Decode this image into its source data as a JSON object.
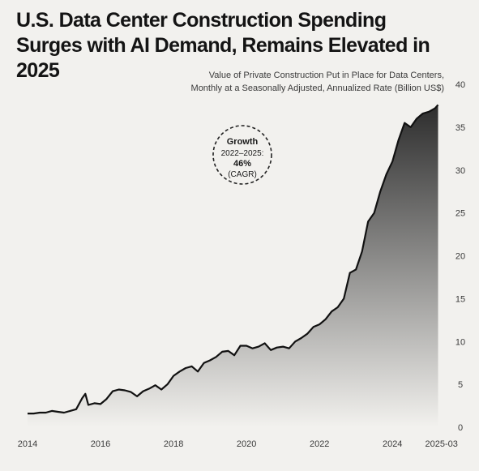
{
  "title_line1": "U.S. Data Center Construction Spending",
  "title_line2": "Surges with AI Demand, Remains Elevated in 2025",
  "subtitle_line1": "Value of Private Construction Put in Place for Data Centers,",
  "subtitle_line2": "Monthly at a Seasonally Adjusted, Annualized Rate (Billion US$)",
  "annotation": {
    "line1": "Growth",
    "line2": "2022–2025:",
    "line3": "46%",
    "line4": "(CAGR)"
  },
  "colors": {
    "line": "#111111",
    "area_top": "#2d2d2d",
    "area_bottom": "#f2f1ee",
    "background": "#f2f1ee"
  },
  "chart_data": {
    "type": "area",
    "title": "U.S. Data Center Construction Spending Surges with AI Demand, Remains Elevated in 2025",
    "subtitle": "Value of Private Construction Put in Place for Data Centers, Monthly at a Seasonally Adjusted, Annualized Rate (Billion US$)",
    "xlabel": "",
    "ylabel": "",
    "xlim": [
      "2014-01",
      "2025-06"
    ],
    "ylim": [
      0,
      40
    ],
    "y_axis_side": "right",
    "grid": false,
    "legend": "none",
    "x_ticks": [
      "2014",
      "2016",
      "2018",
      "2020",
      "2022",
      "2024",
      "2025-03"
    ],
    "y_ticks": [
      "0",
      "5",
      "10",
      "15",
      "20",
      "25",
      "30",
      "35",
      "40"
    ],
    "series": [
      {
        "points": [
          [
            "2014-01",
            1.6
          ],
          [
            "2014-03",
            1.6
          ],
          [
            "2014-05",
            1.7
          ],
          [
            "2014-07",
            1.7
          ],
          [
            "2014-09",
            1.9
          ],
          [
            "2014-11",
            1.8
          ],
          [
            "2015-01",
            1.7
          ],
          [
            "2015-03",
            1.9
          ],
          [
            "2015-05",
            2.1
          ],
          [
            "2015-07",
            3.4
          ],
          [
            "2015-08",
            3.9
          ],
          [
            "2015-09",
            2.6
          ],
          [
            "2015-11",
            2.8
          ],
          [
            "2016-01",
            2.7
          ],
          [
            "2016-03",
            3.3
          ],
          [
            "2016-05",
            4.2
          ],
          [
            "2016-07",
            4.4
          ],
          [
            "2016-09",
            4.3
          ],
          [
            "2016-11",
            4.1
          ],
          [
            "2017-01",
            3.6
          ],
          [
            "2017-03",
            4.2
          ],
          [
            "2017-05",
            4.5
          ],
          [
            "2017-07",
            4.9
          ],
          [
            "2017-09",
            4.4
          ],
          [
            "2017-11",
            5.0
          ],
          [
            "2018-01",
            6.0
          ],
          [
            "2018-03",
            6.5
          ],
          [
            "2018-05",
            6.9
          ],
          [
            "2018-07",
            7.1
          ],
          [
            "2018-09",
            6.5
          ],
          [
            "2018-11",
            7.5
          ],
          [
            "2019-01",
            7.8
          ],
          [
            "2019-03",
            8.2
          ],
          [
            "2019-05",
            8.8
          ],
          [
            "2019-07",
            8.9
          ],
          [
            "2019-09",
            8.4
          ],
          [
            "2019-11",
            9.5
          ],
          [
            "2020-01",
            9.5
          ],
          [
            "2020-03",
            9.2
          ],
          [
            "2020-05",
            9.4
          ],
          [
            "2020-07",
            9.8
          ],
          [
            "2020-09",
            9.0
          ],
          [
            "2020-11",
            9.3
          ],
          [
            "2021-01",
            9.4
          ],
          [
            "2021-03",
            9.2
          ],
          [
            "2021-05",
            10.0
          ],
          [
            "2021-07",
            10.4
          ],
          [
            "2021-09",
            10.9
          ],
          [
            "2021-11",
            11.7
          ],
          [
            "2022-01",
            12.0
          ],
          [
            "2022-03",
            12.6
          ],
          [
            "2022-05",
            13.5
          ],
          [
            "2022-07",
            14.0
          ],
          [
            "2022-09",
            15.0
          ],
          [
            "2022-11",
            18.0
          ],
          [
            "2023-01",
            18.4
          ],
          [
            "2023-03",
            20.5
          ],
          [
            "2023-05",
            24.0
          ],
          [
            "2023-07",
            25.0
          ],
          [
            "2023-09",
            27.5
          ],
          [
            "2023-11",
            29.5
          ],
          [
            "2024-01",
            31.0
          ],
          [
            "2024-03",
            33.5
          ],
          [
            "2024-05",
            35.5
          ],
          [
            "2024-07",
            35.0
          ],
          [
            "2024-09",
            36.0
          ],
          [
            "2024-11",
            36.6
          ],
          [
            "2025-01",
            36.8
          ],
          [
            "2025-03",
            37.2
          ],
          [
            "2025-04",
            37.6
          ]
        ]
      }
    ],
    "annotations": [
      "Growth 2022–2025: 46% (CAGR)"
    ]
  }
}
